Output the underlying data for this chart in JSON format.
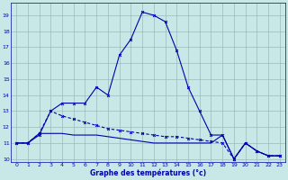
{
  "xlabel": "Graphe des températures (°c)",
  "background_color": "#c8e8e8",
  "grid_color": "#99bbbb",
  "line_color": "#0000aa",
  "ylim_min": 9.8,
  "ylim_max": 19.8,
  "xlim_min": -0.5,
  "xlim_max": 23.5,
  "yticks": [
    10,
    11,
    12,
    13,
    14,
    15,
    16,
    17,
    18,
    19
  ],
  "xticks": [
    0,
    1,
    2,
    3,
    4,
    5,
    6,
    7,
    8,
    9,
    10,
    11,
    12,
    13,
    14,
    15,
    16,
    17,
    18,
    19,
    20,
    21,
    22,
    23
  ],
  "s1_x": [
    0,
    1,
    2,
    3,
    4,
    5,
    6,
    7,
    8,
    9,
    10,
    11,
    12,
    13,
    14,
    15,
    16,
    17,
    18,
    19,
    20,
    21,
    22,
    23
  ],
  "s1_y": [
    11.0,
    11.0,
    11.5,
    13.0,
    13.5,
    13.5,
    13.5,
    14.5,
    14.0,
    16.5,
    17.5,
    19.2,
    19.0,
    18.6,
    16.8,
    14.5,
    13.0,
    11.5,
    11.5,
    10.0,
    11.0,
    10.5,
    10.2,
    10.2
  ],
  "s2_x": [
    0,
    1,
    2,
    3,
    4,
    5,
    6,
    7,
    8,
    9,
    10,
    11,
    12,
    13,
    14,
    15,
    16,
    17,
    18,
    19,
    20,
    21,
    22,
    23
  ],
  "s2_y": [
    11.0,
    11.0,
    11.6,
    13.0,
    12.7,
    12.5,
    12.3,
    12.1,
    11.9,
    11.8,
    11.7,
    11.6,
    11.5,
    11.4,
    11.4,
    11.3,
    11.2,
    11.1,
    11.0,
    10.0,
    11.0,
    10.5,
    10.2,
    10.2
  ],
  "s3_x": [
    0,
    1,
    2,
    3,
    4,
    5,
    6,
    7,
    8,
    9,
    10,
    11,
    12,
    13,
    14,
    15,
    16,
    17,
    18,
    19,
    20,
    21,
    22,
    23
  ],
  "s3_y": [
    11.0,
    11.0,
    11.6,
    11.6,
    11.6,
    11.5,
    11.5,
    11.5,
    11.4,
    11.3,
    11.2,
    11.1,
    11.0,
    11.0,
    11.0,
    11.0,
    11.0,
    11.0,
    11.5,
    10.0,
    11.0,
    10.5,
    10.2,
    10.2
  ]
}
